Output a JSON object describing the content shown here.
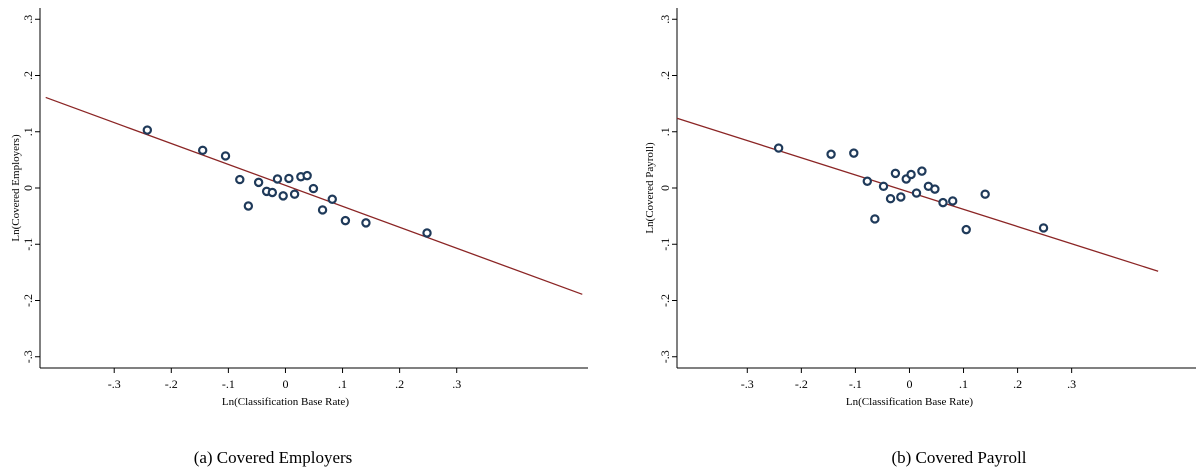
{
  "chart_data": [
    {
      "type": "scatter",
      "title": "",
      "caption": "(a)  Covered Employers",
      "xlabel": "Ln(Classification Base Rate)",
      "ylabel": "Ln(Covered Employers)",
      "xlim": [
        -0.43,
        0.53
      ],
      "ylim": [
        -0.32,
        0.32
      ],
      "xticks": [
        -0.3,
        -0.2,
        -0.1,
        0,
        0.1,
        0.2,
        0.3
      ],
      "xtick_labels": [
        "-.3",
        "-.2",
        "-.1",
        "0",
        ".1",
        ".2",
        ".3"
      ],
      "yticks": [
        -0.3,
        -0.2,
        -0.1,
        0,
        0.1,
        0.2,
        0.3
      ],
      "ytick_labels": [
        "-.3",
        "-.2",
        "-.1",
        "0",
        ".1",
        ".2",
        ".3"
      ],
      "grid": false,
      "fit_line": {
        "x": [
          -0.42,
          0.52
        ],
        "y": [
          0.161,
          -0.189
        ],
        "color": "#8b2525"
      },
      "point_color": "#1f3a5a",
      "points": [
        {
          "x": -0.242,
          "y": 0.103
        },
        {
          "x": -0.145,
          "y": 0.067
        },
        {
          "x": -0.105,
          "y": 0.057
        },
        {
          "x": -0.08,
          "y": 0.015
        },
        {
          "x": -0.065,
          "y": -0.032
        },
        {
          "x": -0.047,
          "y": 0.01
        },
        {
          "x": -0.033,
          "y": -0.006
        },
        {
          "x": -0.023,
          "y": -0.008
        },
        {
          "x": -0.014,
          "y": 0.016
        },
        {
          "x": -0.004,
          "y": -0.014
        },
        {
          "x": 0.006,
          "y": 0.017
        },
        {
          "x": 0.016,
          "y": -0.011
        },
        {
          "x": 0.027,
          "y": 0.02
        },
        {
          "x": 0.038,
          "y": 0.022
        },
        {
          "x": 0.049,
          "y": -0.001
        },
        {
          "x": 0.065,
          "y": -0.039
        },
        {
          "x": 0.082,
          "y": -0.02
        },
        {
          "x": 0.105,
          "y": -0.058
        },
        {
          "x": 0.141,
          "y": -0.062
        },
        {
          "x": 0.248,
          "y": -0.08
        }
      ]
    },
    {
      "type": "scatter",
      "title": "",
      "caption": "(b)  Covered Payroll",
      "xlabel": "Ln(Classification Base Rate)",
      "ylabel": "Ln(Covered Payroll)",
      "xlim": [
        -0.43,
        0.53
      ],
      "ylim": [
        -0.32,
        0.32
      ],
      "xticks": [
        -0.3,
        -0.2,
        -0.1,
        0,
        0.1,
        0.2,
        0.3
      ],
      "xtick_labels": [
        "-.3",
        "-.2",
        "-.1",
        "0",
        ".1",
        ".2",
        ".3"
      ],
      "yticks": [
        -0.3,
        -0.2,
        -0.1,
        0,
        0.1,
        0.2,
        0.3
      ],
      "ytick_labels": [
        "-.3",
        "-.2",
        "-.1",
        "0",
        ".1",
        ".2",
        ".3"
      ],
      "grid": false,
      "fit_line": {
        "x": [
          -0.43,
          0.46
        ],
        "y": [
          0.124,
          -0.148
        ],
        "color": "#8b2525"
      },
      "point_color": "#1f3a5a",
      "points": [
        {
          "x": -0.242,
          "y": 0.071
        },
        {
          "x": -0.145,
          "y": 0.06
        },
        {
          "x": -0.103,
          "y": 0.062
        },
        {
          "x": -0.078,
          "y": 0.012
        },
        {
          "x": -0.064,
          "y": -0.055
        },
        {
          "x": -0.048,
          "y": 0.003
        },
        {
          "x": -0.035,
          "y": -0.019
        },
        {
          "x": -0.026,
          "y": 0.026
        },
        {
          "x": -0.016,
          "y": -0.016
        },
        {
          "x": -0.006,
          "y": 0.016
        },
        {
          "x": 0.003,
          "y": 0.024
        },
        {
          "x": 0.013,
          "y": -0.009
        },
        {
          "x": 0.023,
          "y": 0.03
        },
        {
          "x": 0.035,
          "y": 0.003
        },
        {
          "x": 0.047,
          "y": -0.002
        },
        {
          "x": 0.062,
          "y": -0.026
        },
        {
          "x": 0.08,
          "y": -0.023
        },
        {
          "x": 0.105,
          "y": -0.074
        },
        {
          "x": 0.14,
          "y": -0.011
        },
        {
          "x": 0.248,
          "y": -0.071
        }
      ]
    }
  ]
}
